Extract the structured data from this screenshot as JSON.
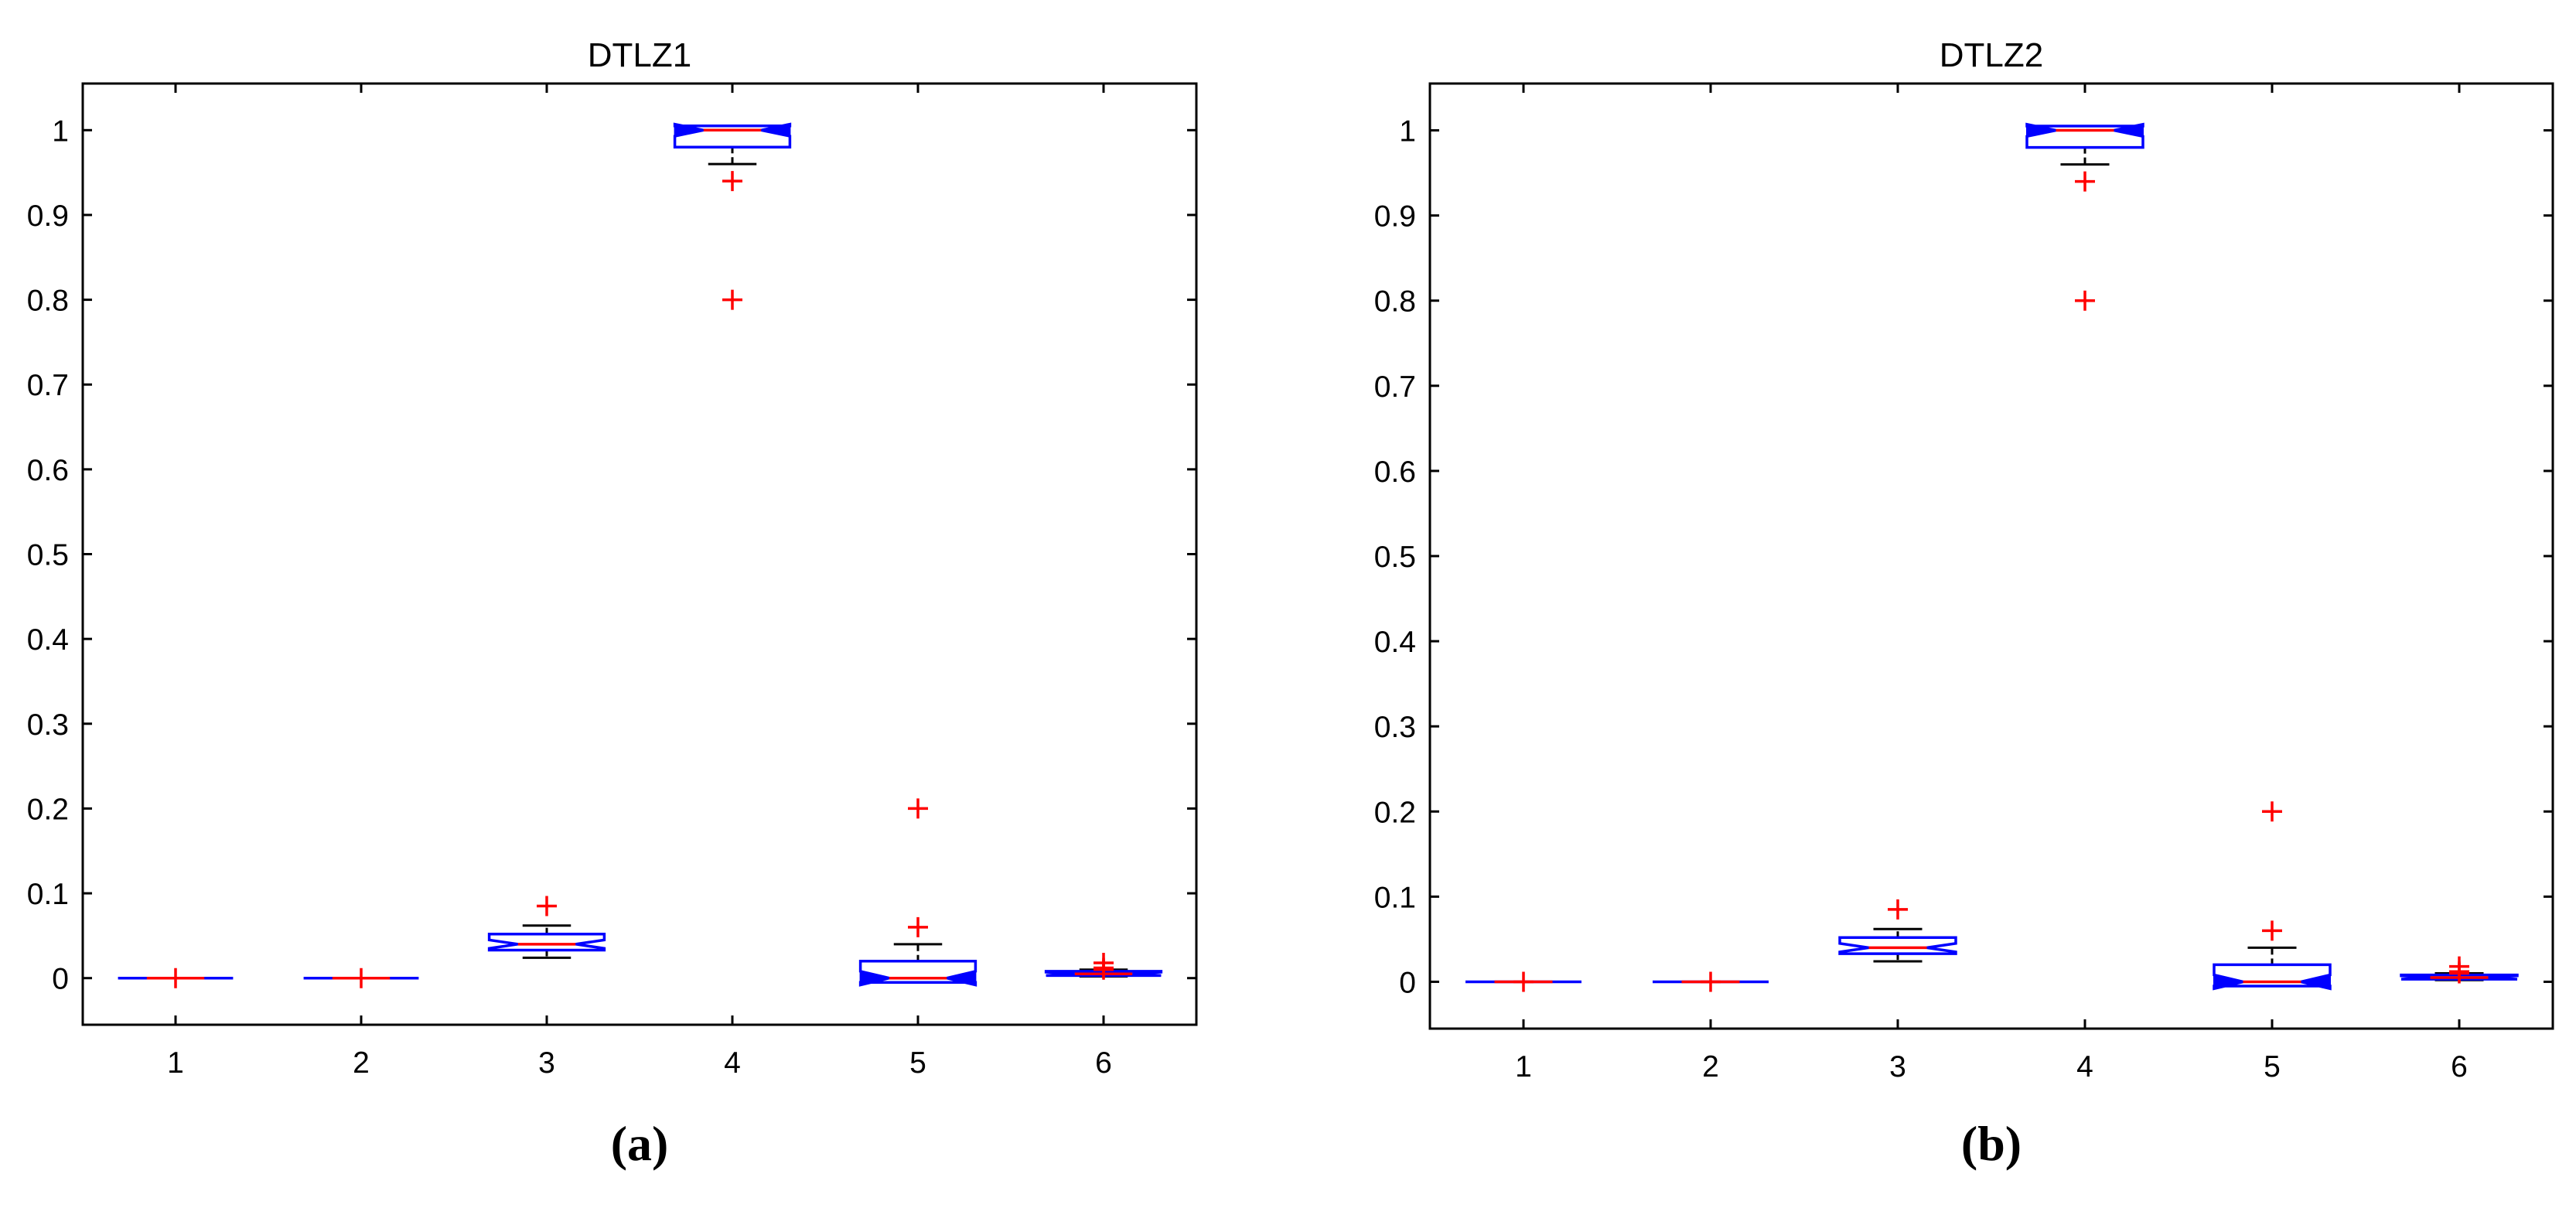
{
  "chart_data": [
    {
      "type": "box",
      "title": "DTLZ1",
      "caption": "(a)",
      "categories": [
        "1",
        "2",
        "3",
        "4",
        "5",
        "6"
      ],
      "ylim": [
        -0.055,
        1.055
      ],
      "yticks": [
        0,
        0.1,
        0.2,
        0.3,
        0.4,
        0.5,
        0.6,
        0.7,
        0.8,
        0.9,
        1
      ],
      "ytick_labels": [
        "0",
        "0.1",
        "0.2",
        "0.3",
        "0.4",
        "0.5",
        "0.6",
        "0.7",
        "0.8",
        "0.9",
        "1"
      ],
      "notched": true,
      "boxes": [
        {
          "category": "1",
          "q1": 0,
          "median": 0,
          "q3": 0,
          "whisker_low": 0,
          "whisker_high": 0,
          "notch_low": 0,
          "notch_high": 0,
          "outliers": [
            0
          ]
        },
        {
          "category": "2",
          "q1": 0,
          "median": 0,
          "q3": 0,
          "whisker_low": 0,
          "whisker_high": 0,
          "notch_low": 0,
          "notch_high": 0,
          "outliers": [
            0
          ]
        },
        {
          "category": "3",
          "q1": 0.033,
          "median": 0.04,
          "q3": 0.052,
          "whisker_low": 0.024,
          "whisker_high": 0.062,
          "notch_low": 0.035,
          "notch_high": 0.045,
          "outliers": [
            0.085
          ]
        },
        {
          "category": "4",
          "q1": 0.98,
          "median": 1.0,
          "q3": 1.005,
          "whisker_low": 0.96,
          "whisker_high": 1.005,
          "notch_low": 0.993,
          "notch_high": 1.007,
          "outliers": [
            0.94,
            0.8
          ]
        },
        {
          "category": "5",
          "q1": -0.005,
          "median": 0,
          "q3": 0.02,
          "whisker_low": -0.005,
          "whisker_high": 0.04,
          "notch_low": -0.008,
          "notch_high": 0.008,
          "outliers": [
            0.06,
            0.2
          ]
        },
        {
          "category": "6",
          "q1": 0.003,
          "median": 0.005,
          "q3": 0.008,
          "whisker_low": 0.002,
          "whisker_high": 0.01,
          "notch_low": 0.003,
          "notch_high": 0.007,
          "outliers": [
            0.01,
            0.012,
            0.018
          ]
        }
      ]
    },
    {
      "type": "box",
      "title": "DTLZ2",
      "caption": "(b)",
      "categories": [
        "1",
        "2",
        "3",
        "4",
        "5",
        "6"
      ],
      "ylim": [
        -0.055,
        1.055
      ],
      "yticks": [
        0,
        0.1,
        0.2,
        0.3,
        0.4,
        0.5,
        0.6,
        0.7,
        0.8,
        0.9,
        1
      ],
      "ytick_labels": [
        "0",
        "0.1",
        "0.2",
        "0.3",
        "0.4",
        "0.5",
        "0.6",
        "0.7",
        "0.8",
        "0.9",
        "1"
      ],
      "notched": true,
      "boxes": [
        {
          "category": "1",
          "q1": 0,
          "median": 0,
          "q3": 0,
          "whisker_low": 0,
          "whisker_high": 0,
          "notch_low": 0,
          "notch_high": 0,
          "outliers": [
            0
          ]
        },
        {
          "category": "2",
          "q1": 0,
          "median": 0,
          "q3": 0,
          "whisker_low": 0,
          "whisker_high": 0,
          "notch_low": 0,
          "notch_high": 0,
          "outliers": [
            0
          ]
        },
        {
          "category": "3",
          "q1": 0.033,
          "median": 0.04,
          "q3": 0.052,
          "whisker_low": 0.024,
          "whisker_high": 0.062,
          "notch_low": 0.035,
          "notch_high": 0.045,
          "outliers": [
            0.085
          ]
        },
        {
          "category": "4",
          "q1": 0.98,
          "median": 1.0,
          "q3": 1.005,
          "whisker_low": 0.96,
          "whisker_high": 1.005,
          "notch_low": 0.993,
          "notch_high": 1.007,
          "outliers": [
            0.94,
            0.8
          ]
        },
        {
          "category": "5",
          "q1": -0.005,
          "median": 0,
          "q3": 0.02,
          "whisker_low": -0.005,
          "whisker_high": 0.04,
          "notch_low": -0.008,
          "notch_high": 0.008,
          "outliers": [
            0.06,
            0.2
          ]
        },
        {
          "category": "6",
          "q1": 0.003,
          "median": 0.005,
          "q3": 0.008,
          "whisker_low": 0.002,
          "whisker_high": 0.01,
          "notch_low": 0.003,
          "notch_high": 0.007,
          "outliers": [
            0.01,
            0.012,
            0.018
          ]
        }
      ]
    }
  ],
  "colors": {
    "box": "#0000ff",
    "median": "#ff0000",
    "outlier": "#ff0000",
    "whisker": "#000000",
    "axis": "#000000"
  }
}
